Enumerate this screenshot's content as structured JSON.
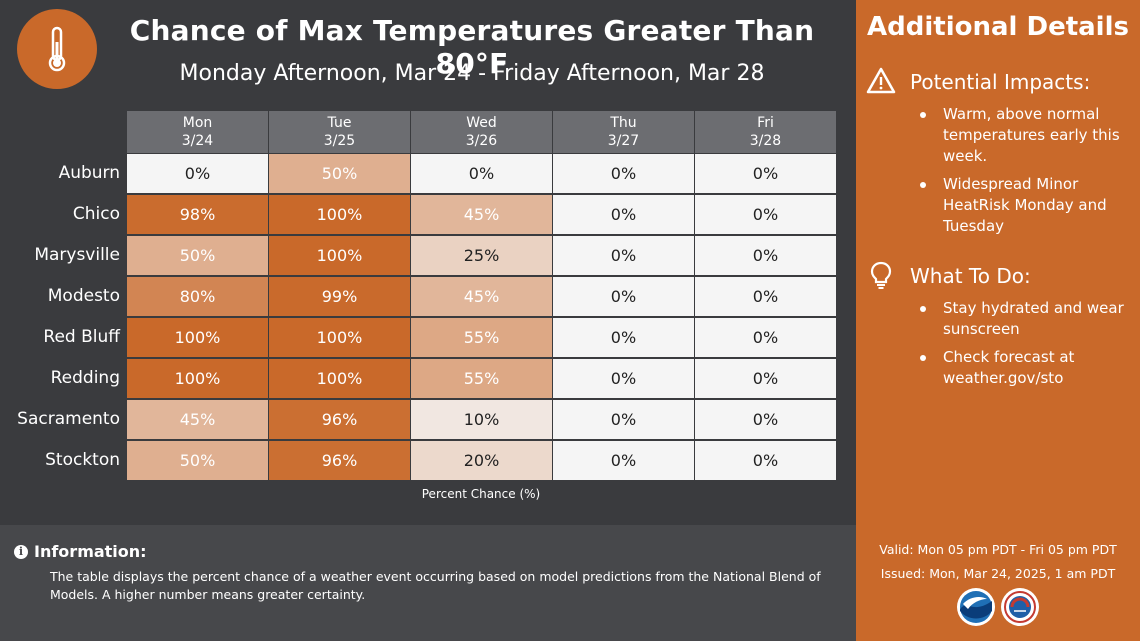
{
  "header": {
    "title": "Chance of Max Temperatures Greater Than 80°F",
    "subtitle": "Monday Afternoon, Mar 24 - Friday Afternoon, Mar 28"
  },
  "logo_icon": "thermometer-icon",
  "table": {
    "columns": [
      {
        "day": "Mon",
        "date": "3/24"
      },
      {
        "day": "Tue",
        "date": "3/25"
      },
      {
        "day": "Wed",
        "date": "3/26"
      },
      {
        "day": "Thu",
        "date": "3/27"
      },
      {
        "day": "Fri",
        "date": "3/28"
      }
    ],
    "rows": [
      {
        "city": "Auburn",
        "values": [
          0,
          50,
          0,
          0,
          0
        ]
      },
      {
        "city": "Chico",
        "values": [
          98,
          100,
          45,
          0,
          0
        ]
      },
      {
        "city": "Marysville",
        "values": [
          50,
          100,
          25,
          0,
          0
        ]
      },
      {
        "city": "Modesto",
        "values": [
          80,
          99,
          45,
          0,
          0
        ]
      },
      {
        "city": "Red Bluff",
        "values": [
          100,
          100,
          55,
          0,
          0
        ]
      },
      {
        "city": "Redding",
        "values": [
          100,
          100,
          55,
          0,
          0
        ]
      },
      {
        "city": "Sacramento",
        "values": [
          45,
          96,
          10,
          0,
          0
        ]
      },
      {
        "city": "Stockton",
        "values": [
          50,
          96,
          20,
          0,
          0
        ]
      }
    ],
    "unit_suffix": "%",
    "x_label": "Percent Chance (%)",
    "color_scale": {
      "low": "#f5f5f5",
      "high": "#c9692a"
    }
  },
  "sidebar": {
    "title": "Additional Details",
    "impacts": {
      "icon": "warning-icon",
      "title": "Potential Impacts:",
      "items": [
        "Warm, above normal temperatures early this week.",
        "Widespread Minor HeatRisk Monday and Tuesday"
      ]
    },
    "todo": {
      "icon": "lightbulb-icon",
      "title": "What To Do:",
      "items": [
        "Stay hydrated and wear sunscreen",
        "Check forecast at weather.gov/sto"
      ]
    },
    "valid": "Valid: Mon 05 pm PDT - Fri 05 pm PDT",
    "issued": "Issued: Mon, Mar 24, 2025, 1 am PDT",
    "logos": [
      "noaa-logo",
      "nws-logo"
    ]
  },
  "info": {
    "title": "Information:",
    "text": "The table displays the percent chance of a weather event occurring based on model predictions from the National Blend of Models. A higher number means greater certainty."
  }
}
